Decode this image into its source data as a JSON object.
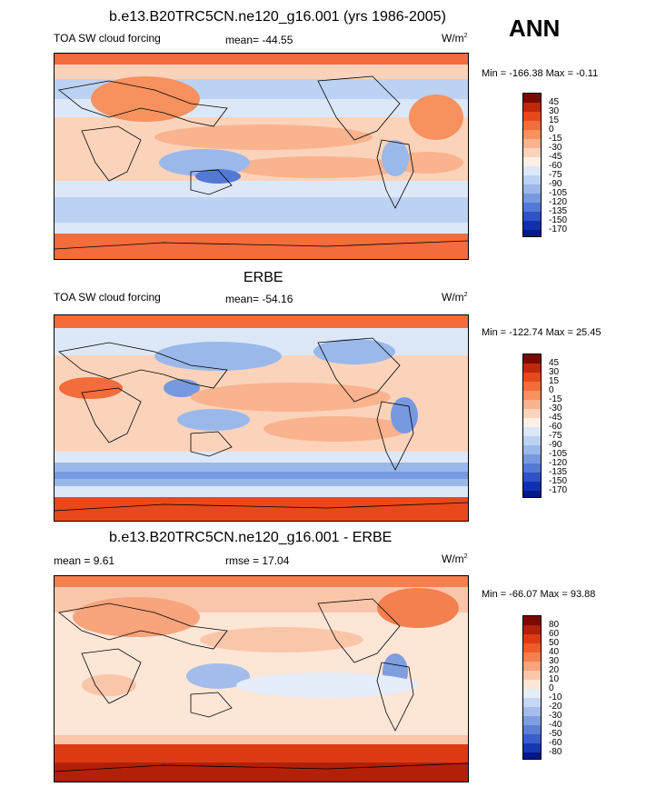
{
  "figure": {
    "title": "b.e13.B20TRC5CN.ne120_g16.001 (yrs 1986-2005)",
    "season": "ANN"
  },
  "chart_data": [
    {
      "type": "heatmap",
      "title": "b.e13.B20TRC5CN.ne120_g16.001 (yrs 1986-2005)",
      "left_label": "TOA SW cloud forcing",
      "center_label": "mean= -44.55",
      "units": "W/m",
      "units_sup": "2",
      "minmax": "Min = -166.38 Max =  -0.11",
      "colorbar_levels": [
        45,
        30,
        15,
        0,
        -15,
        -30,
        -45,
        -60,
        -75,
        -90,
        -105,
        -120,
        -135,
        -150,
        -170
      ]
    },
    {
      "type": "heatmap",
      "title": "ERBE",
      "left_label": "TOA SW cloud forcing",
      "center_label": "mean= -54.16",
      "units": "W/m",
      "units_sup": "2",
      "minmax": "Min = -122.74 Max =  25.45",
      "colorbar_levels": [
        45,
        30,
        15,
        0,
        -15,
        -30,
        -45,
        -60,
        -75,
        -90,
        -105,
        -120,
        -135,
        -150,
        -170
      ]
    },
    {
      "type": "heatmap",
      "title": "b.e13.B20TRC5CN.ne120_g16.001 - ERBE",
      "left_label": "mean =   9.61",
      "center_label": "rmse =  17.04",
      "units": "W/m",
      "units_sup": "2",
      "minmax": "Min = -66.07 Max =  93.88",
      "colorbar_levels": [
        80,
        60,
        50,
        40,
        30,
        20,
        10,
        0,
        -10,
        -20,
        -30,
        -40,
        -50,
        -60,
        -80
      ]
    }
  ],
  "colors": {
    "abs_scale": [
      "#7a0a00",
      "#c0280c",
      "#e8481c",
      "#f36c3c",
      "#f7915f",
      "#f9b38e",
      "#fbd3bb",
      "#fdf0e6",
      "#dce8f8",
      "#bcd2f2",
      "#9ab8ea",
      "#7799e0",
      "#5478d6",
      "#2f52c8",
      "#1030b0",
      "#001a8a"
    ],
    "diff_scale": [
      "#7a0a00",
      "#b2200a",
      "#dd3a14",
      "#f05a2c",
      "#f5804f",
      "#f8a47c",
      "#fac6a9",
      "#fde6d6",
      "#e4edf9",
      "#c5d7f3",
      "#a3bcea",
      "#7f9ee0",
      "#5c7fd6",
      "#3a5ccc",
      "#1738b5",
      "#00188a"
    ]
  }
}
